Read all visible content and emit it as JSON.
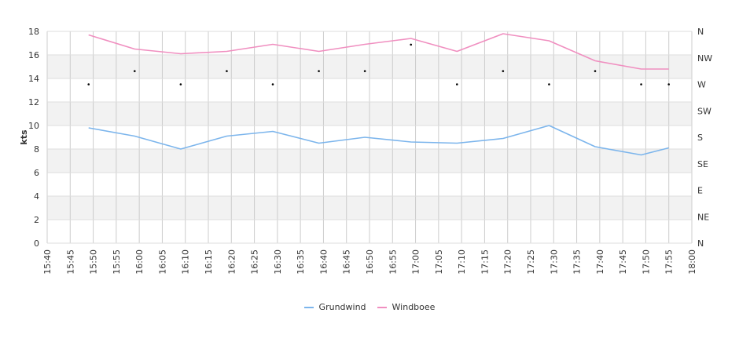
{
  "chart_data": {
    "type": "line",
    "ylabel": "kts",
    "ylim": [
      0,
      18
    ],
    "yticks": [
      "0",
      "2",
      "4",
      "6",
      "8",
      "10",
      "12",
      "14",
      "16",
      "18"
    ],
    "x_range": [
      "15:40",
      "18:00"
    ],
    "xticks": [
      "15:40",
      "15:45",
      "15:50",
      "15:55",
      "16:00",
      "16:05",
      "16:10",
      "16:15",
      "16:20",
      "16:25",
      "16:30",
      "16:35",
      "16:40",
      "16:45",
      "16:50",
      "16:55",
      "17:00",
      "17:05",
      "17:10",
      "17:15",
      "17:20",
      "17:25",
      "17:30",
      "17:35",
      "17:40",
      "17:45",
      "17:50",
      "17:55",
      "18:00"
    ],
    "right_axis": {
      "label": "",
      "ticks": [
        "N",
        "NE",
        "E",
        "SE",
        "S",
        "SW",
        "W",
        "NW",
        "N"
      ]
    },
    "grid": true,
    "legend_position": "bottom",
    "x": [
      "15:49",
      "15:59",
      "16:09",
      "16:19",
      "16:29",
      "16:39",
      "16:49",
      "16:59",
      "17:09",
      "17:19",
      "17:29",
      "17:39",
      "17:49",
      "17:55"
    ],
    "series": [
      {
        "name": "Grundwind",
        "color": "#7cb5ec",
        "values": [
          9.8,
          9.1,
          8.0,
          9.1,
          9.5,
          8.5,
          9.0,
          8.6,
          8.5,
          8.9,
          10.0,
          8.2,
          7.5,
          8.1
        ]
      },
      {
        "name": "Windboee",
        "color": "#f08fc0",
        "values": [
          17.7,
          16.5,
          16.1,
          16.3,
          16.9,
          16.3,
          16.9,
          17.4,
          16.3,
          17.8,
          17.2,
          15.5,
          14.8,
          14.8
        ]
      }
    ],
    "direction": {
      "x": [
        "15:49",
        "15:59",
        "16:09",
        "16:19",
        "16:29",
        "16:39",
        "16:49",
        "16:59",
        "17:09",
        "17:19",
        "17:29",
        "17:39",
        "17:49",
        "17:55"
      ],
      "values": [
        "W",
        "WNW",
        "W",
        "WNW",
        "W",
        "WNW",
        "WNW",
        "NNW",
        "W",
        "WNW",
        "W",
        "WNW",
        "W",
        "W"
      ]
    }
  }
}
